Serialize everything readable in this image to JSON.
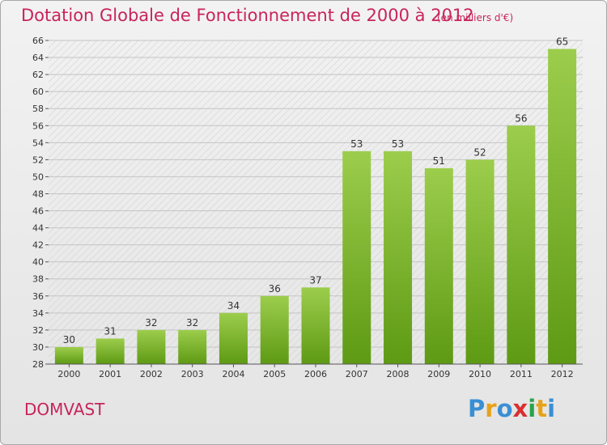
{
  "title": "Dotation Globale de Fonctionnement de 2000 à 2012",
  "unit_note": "(en milliers d'€)",
  "commune": "DOMVAST",
  "logo": {
    "letters": [
      "P",
      "r",
      "o",
      "x",
      "i",
      "t",
      "i"
    ],
    "colors": [
      "#3a8fd4",
      "#e8a21a",
      "#3a8fd4",
      "#d83030",
      "#2aa34a",
      "#e8a21a",
      "#3a8fd4"
    ]
  },
  "colors": {
    "bar_top": "#9ccd4c",
    "bar_bottom": "#5e9a14",
    "title": "#c8245a"
  },
  "chart_data": {
    "type": "bar",
    "title": "Dotation Globale de Fonctionnement de 2000 à 2012",
    "xlabel": "",
    "ylabel": "",
    "categories": [
      "2000",
      "2001",
      "2002",
      "2003",
      "2004",
      "2005",
      "2006",
      "2007",
      "2008",
      "2009",
      "2010",
      "2011",
      "2012"
    ],
    "values": [
      30,
      31,
      32,
      32,
      34,
      36,
      37,
      53,
      53,
      51,
      52,
      56,
      65
    ],
    "ylim": [
      28,
      66
    ],
    "ytick_step": 2,
    "grid": true
  }
}
